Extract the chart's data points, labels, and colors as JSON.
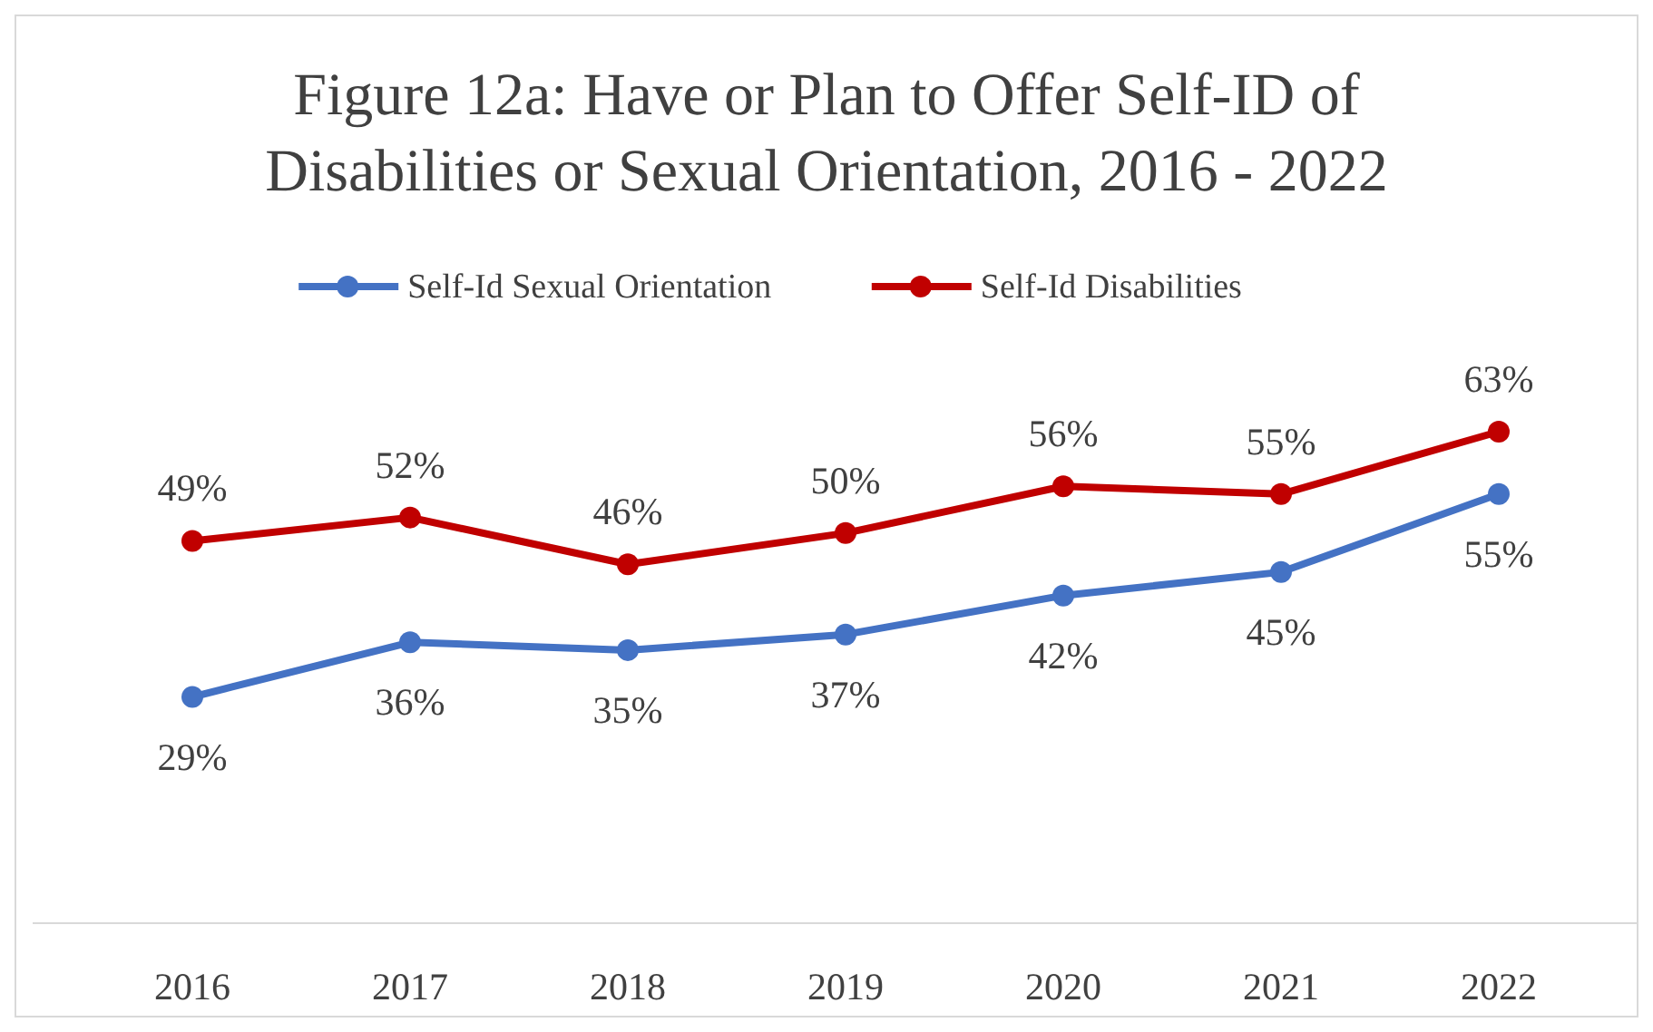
{
  "chart_data": {
    "type": "line",
    "title": "Figure 12a: Have or Plan to Offer Self-ID of Disabilities or Sexual Orientation, 2016 - 2022",
    "categories": [
      "2016",
      "2017",
      "2018",
      "2019",
      "2020",
      "2021",
      "2022"
    ],
    "tick_labels": "x",
    "legend": "top",
    "marker": "circle",
    "series": [
      {
        "name": "Self-Id Sexual Orientation",
        "color": "#4472c4",
        "values": [
          29,
          36,
          35,
          37,
          42,
          45,
          55
        ],
        "value_labels": [
          "29%",
          "36%",
          "35%",
          "37%",
          "42%",
          "45%",
          "55%"
        ]
      },
      {
        "name": "Self-Id Disabilities",
        "color": "#c00000",
        "values": [
          49,
          52,
          46,
          50,
          56,
          55,
          63
        ],
        "value_labels": [
          "49%",
          "52%",
          "46%",
          "50%",
          "56%",
          "55%",
          "63%"
        ]
      }
    ]
  }
}
